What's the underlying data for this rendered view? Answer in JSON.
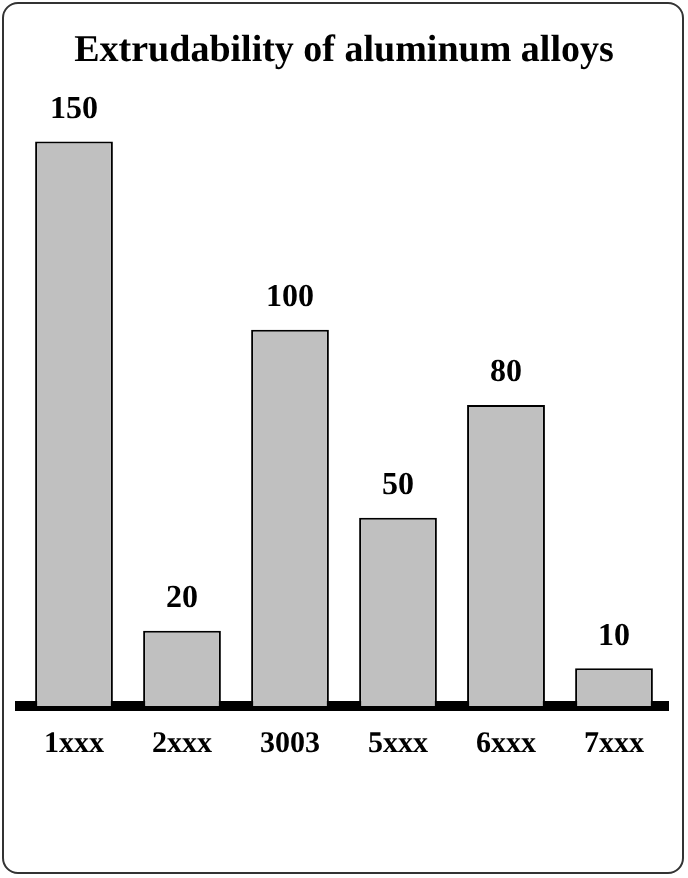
{
  "chart_data": {
    "type": "bar",
    "title": "Extrudability of aluminum alloys",
    "categories": [
      "1xxx",
      "2xxx",
      "3003",
      "5xxx",
      "6xxx",
      "7xxx"
    ],
    "values": [
      150,
      20,
      100,
      50,
      80,
      10
    ],
    "color": "#c0c0c0",
    "ylim": [
      0,
      150
    ],
    "data_labels": true,
    "grid": false,
    "legend": false
  }
}
